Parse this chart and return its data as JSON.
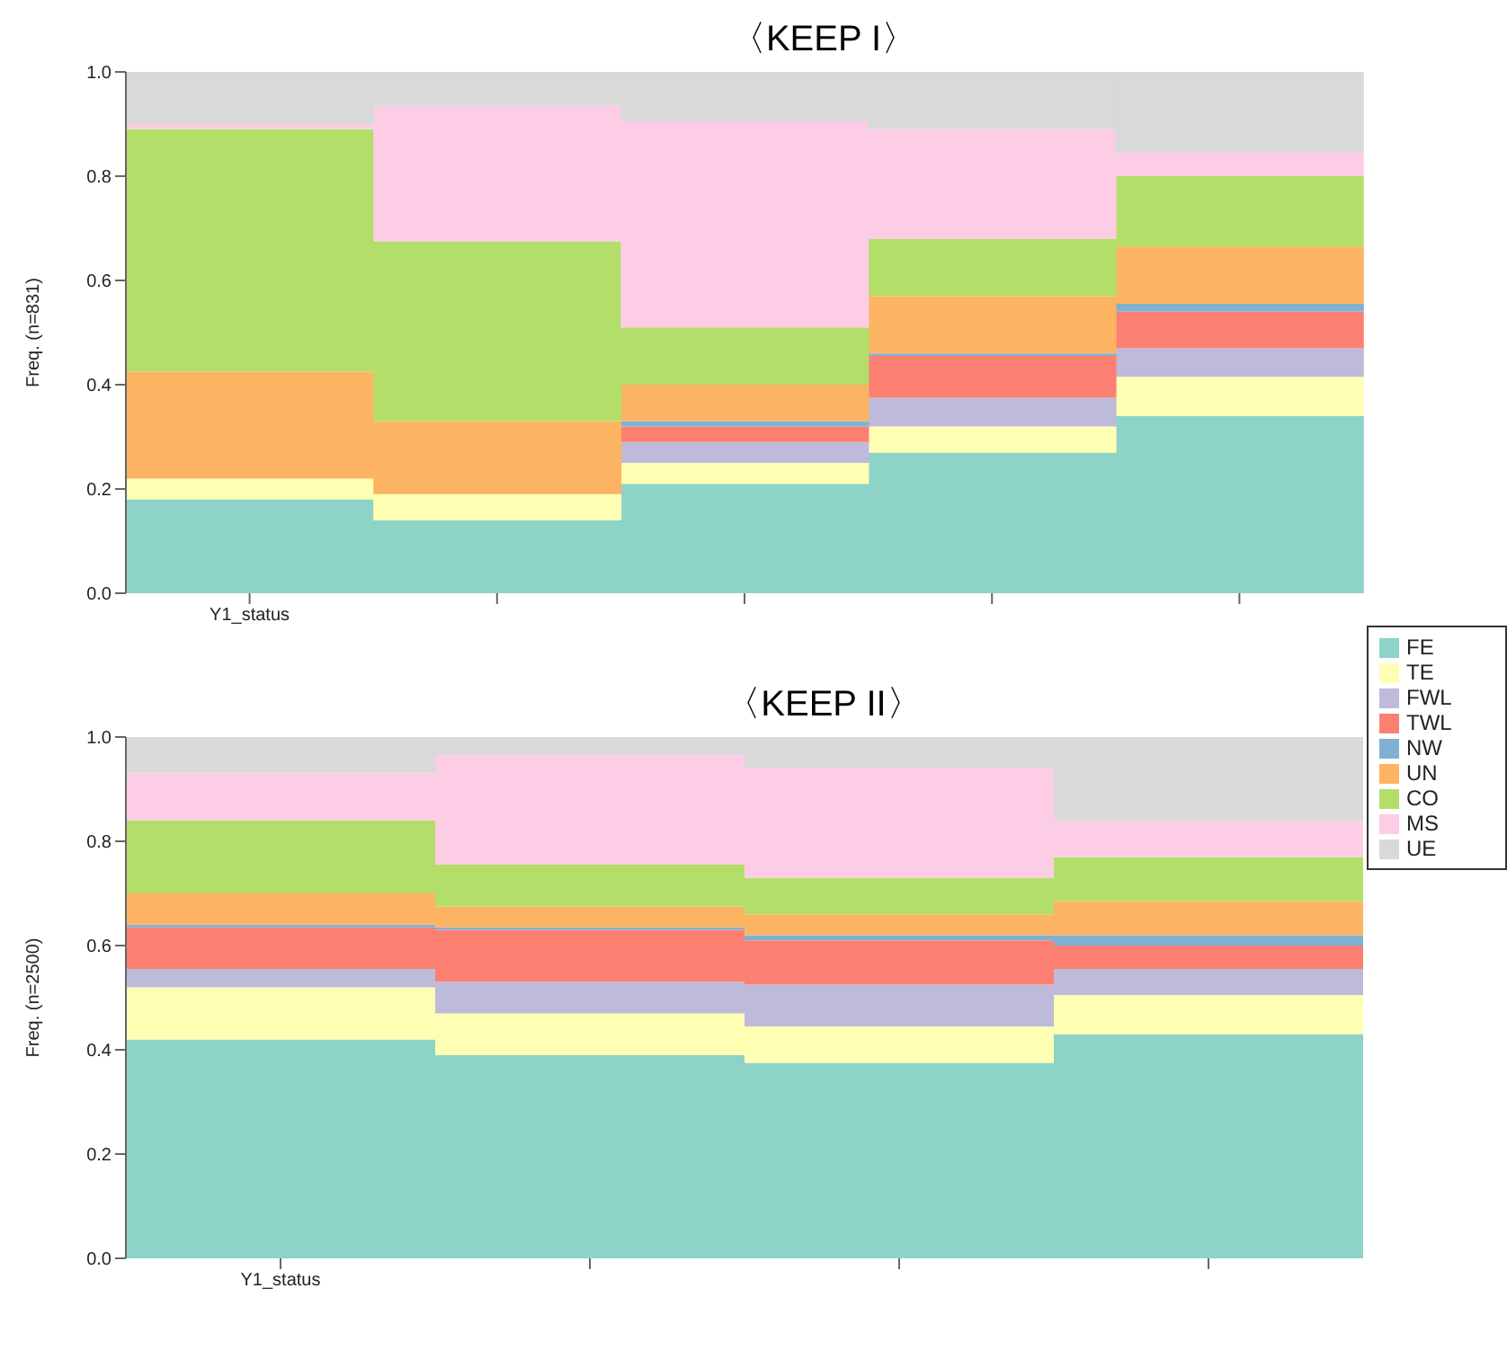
{
  "chart_data": [
    {
      "type": "bar",
      "title": "〈KEEP I〉",
      "ylabel": "Freq. (n=831)",
      "stacked": true,
      "legend": "right",
      "grid": false,
      "categories": [
        "Y1_status",
        null,
        null,
        null,
        null
      ],
      "ylim": [
        0,
        1
      ],
      "yticks": [
        {
          "value": 0,
          "label": "0.0"
        },
        {
          "value": 0.2,
          "label": "0.2"
        },
        {
          "value": 0.4,
          "label": "0.4"
        },
        {
          "value": 0.6,
          "label": "0.6"
        },
        {
          "value": 0.8,
          "label": "0.8"
        },
        {
          "value": 1,
          "label": "1.0"
        }
      ],
      "series": [
        {
          "name": "FE",
          "color": "#8dd3c7",
          "values": [
            0.18,
            0.14,
            0.21,
            0.27,
            0.34
          ]
        },
        {
          "name": "TE",
          "color": "#ffffb3",
          "values": [
            0.04,
            0.05,
            0.04,
            0.05,
            0.075
          ]
        },
        {
          "name": "FWL",
          "color": "#bebada",
          "values": [
            0,
            0,
            0.04,
            0.055,
            0.055
          ]
        },
        {
          "name": "TWL",
          "color": "#fb8072",
          "values": [
            0,
            0,
            0.03,
            0.08,
            0.07
          ]
        },
        {
          "name": "NW",
          "color": "#80b1d3",
          "values": [
            0,
            0,
            0.01,
            0.005,
            0.015
          ]
        },
        {
          "name": "UN",
          "color": "#fdb462",
          "values": [
            0.205,
            0.14,
            0.07,
            0.11,
            0.11
          ]
        },
        {
          "name": "CO",
          "color": "#b3de69",
          "values": [
            0.465,
            0.345,
            0.11,
            0.11,
            0.135
          ]
        },
        {
          "name": "MS",
          "color": "#fccde5",
          "values": [
            0.01,
            0.26,
            0.395,
            0.21,
            0.045
          ]
        },
        {
          "name": "UE",
          "color": "#d9d9d9",
          "values": [
            0.1,
            0.065,
            0.095,
            0.11,
            0.155
          ]
        }
      ]
    },
    {
      "type": "bar",
      "title": "〈KEEP II〉",
      "ylabel": "Freq. (n=2500)",
      "stacked": true,
      "grid": false,
      "categories": [
        "Y1_status",
        null,
        null,
        null
      ],
      "ylim": [
        0,
        1
      ],
      "yticks": [
        {
          "value": 0,
          "label": "0.0"
        },
        {
          "value": 0.2,
          "label": "0.2"
        },
        {
          "value": 0.4,
          "label": "0.4"
        },
        {
          "value": 0.6,
          "label": "0.6"
        },
        {
          "value": 0.8,
          "label": "0.8"
        },
        {
          "value": 1,
          "label": "1.0"
        }
      ],
      "series": [
        {
          "color": "#8dd3c7",
          "values": [
            0.42,
            0.39,
            0.375,
            0.43
          ]
        },
        {
          "color": "#ffffb3",
          "values": [
            0.1,
            0.08,
            0.07,
            0.075
          ]
        },
        {
          "color": "#bebada",
          "values": [
            0.035,
            0.06,
            0.08,
            0.05
          ]
        },
        {
          "color": "#fb8072",
          "values": [
            0.08,
            0.1,
            0.085,
            0.045
          ]
        },
        {
          "color": "#80b1d3",
          "values": [
            0.005,
            0.005,
            0.01,
            0.02
          ]
        },
        {
          "color": "#fdb462",
          "values": [
            0.06,
            0.04,
            0.04,
            0.065
          ]
        },
        {
          "color": "#b3de69",
          "values": [
            0.14,
            0.08,
            0.07,
            0.085
          ]
        },
        {
          "color": "#fccde5",
          "values": [
            0.09,
            0.21,
            0.21,
            0.07
          ]
        },
        {
          "color": "#d9d9d9",
          "values": [
            0.07,
            0.035,
            0.06,
            0.16
          ]
        }
      ]
    }
  ]
}
